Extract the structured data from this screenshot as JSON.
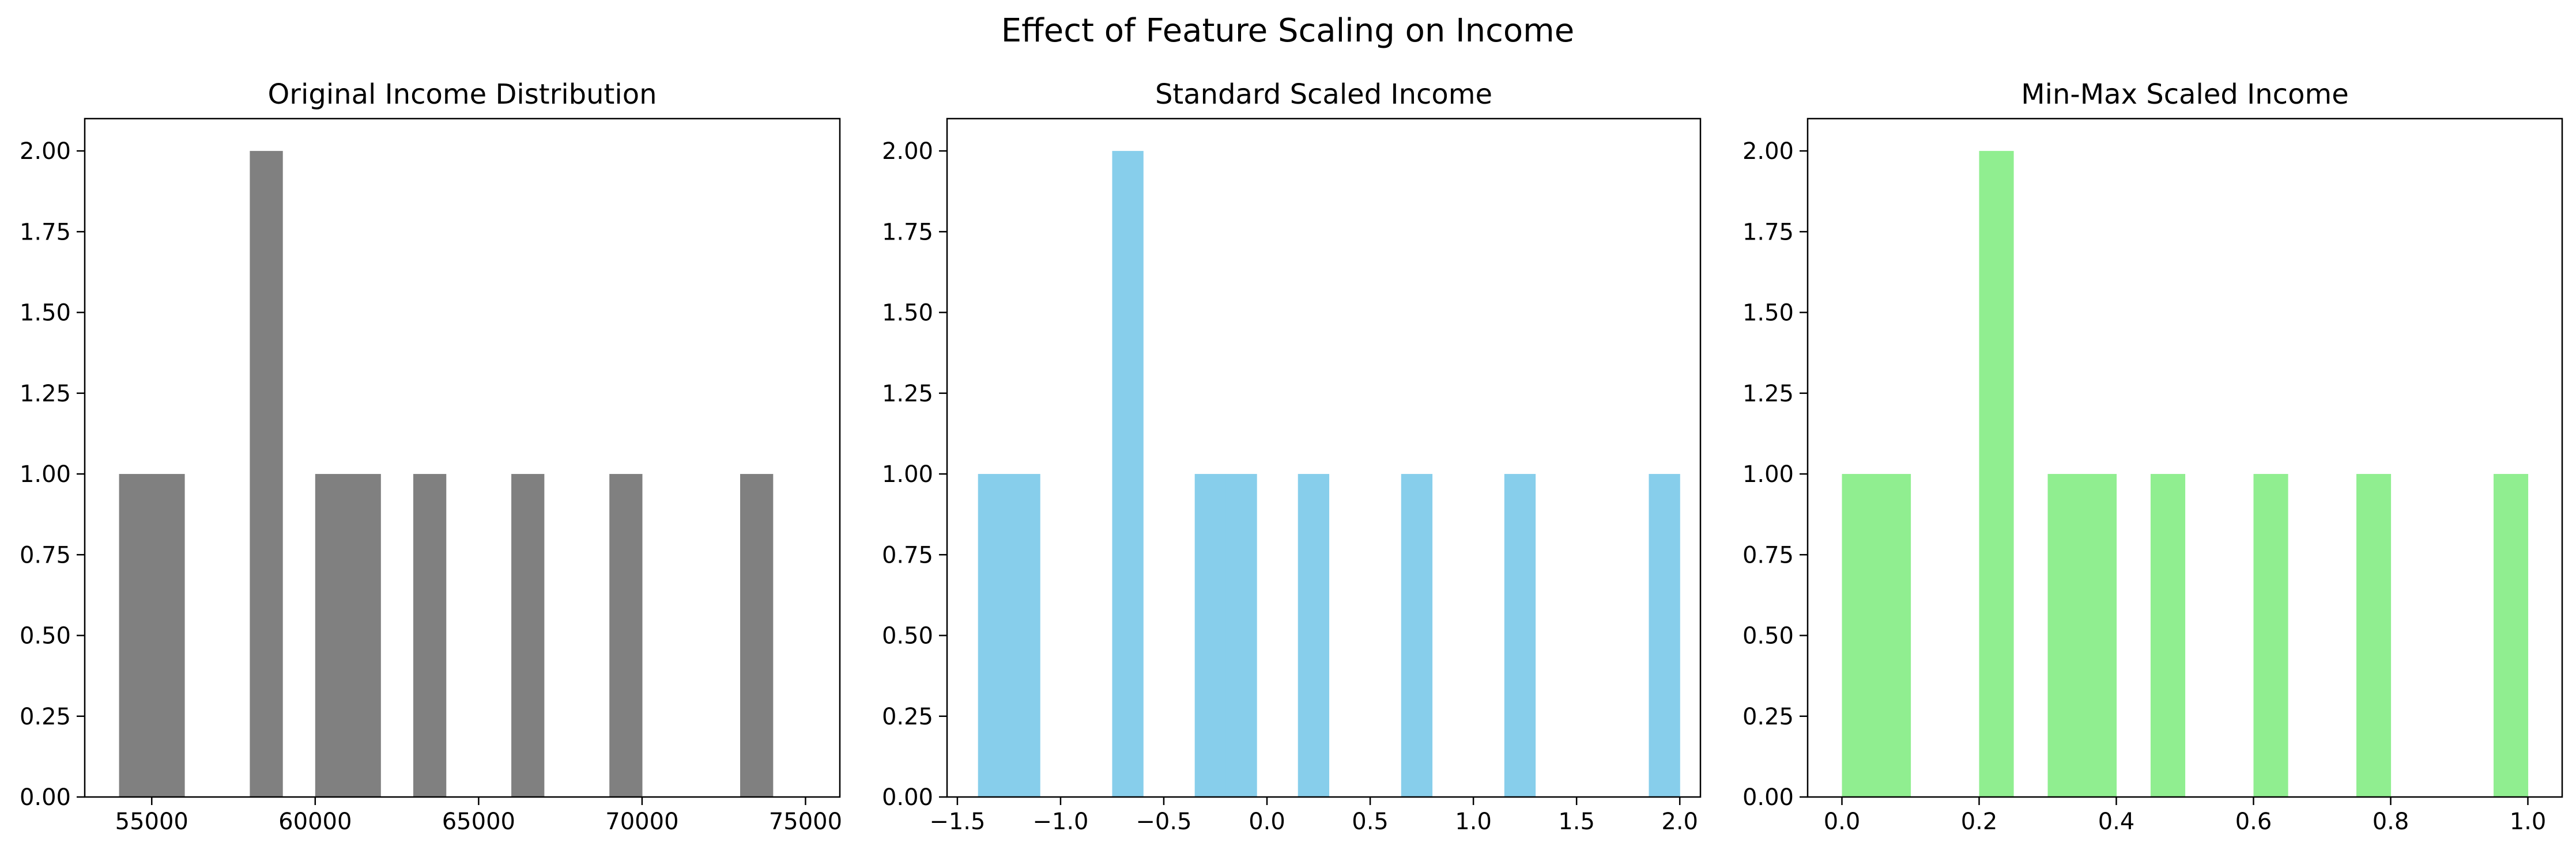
{
  "figure": {
    "title": "Effect of Feature Scaling on Income"
  },
  "chart_data": [
    {
      "type": "bar",
      "title": "Original Income Distribution",
      "color": "#808080",
      "xlim": [
        52950,
        76050
      ],
      "ylim": [
        0,
        2.1
      ],
      "xticks": [
        55000,
        60000,
        65000,
        70000,
        75000
      ],
      "xtick_labels": [
        "55000",
        "60000",
        "65000",
        "70000",
        "75000"
      ],
      "yticks": [
        0,
        0.25,
        0.5,
        0.75,
        1,
        1.25,
        1.5,
        1.75,
        2
      ],
      "ytick_labels": [
        "0.00",
        "0.25",
        "0.50",
        "0.75",
        "1.00",
        "1.25",
        "1.50",
        "1.75",
        "2.00"
      ],
      "bars": [
        {
          "x0": 54000,
          "x1": 55000,
          "value": 1
        },
        {
          "x0": 55000,
          "x1": 56000,
          "value": 1
        },
        {
          "x0": 58000,
          "x1": 59000,
          "value": 2
        },
        {
          "x0": 60000,
          "x1": 61000,
          "value": 1
        },
        {
          "x0": 61000,
          "x1": 62000,
          "value": 1
        },
        {
          "x0": 63000,
          "x1": 64000,
          "value": 1
        },
        {
          "x0": 66000,
          "x1": 67000,
          "value": 1
        },
        {
          "x0": 69000,
          "x1": 70000,
          "value": 1
        },
        {
          "x0": 73000,
          "x1": 74000,
          "value": 1
        }
      ]
    },
    {
      "type": "bar",
      "title": "Standard Scaled Income",
      "color": "#87ceeb",
      "xlim": [
        -1.55,
        2.1
      ],
      "ylim": [
        0,
        2.1
      ],
      "xticks": [
        -1.5,
        -1.0,
        -0.5,
        0.0,
        0.5,
        1.0,
        1.5,
        2.0
      ],
      "xtick_labels": [
        "−1.5",
        "−1.0",
        "−0.5",
        "0.0",
        "0.5",
        "1.0",
        "1.5",
        "2.0"
      ],
      "yticks": [
        0,
        0.25,
        0.5,
        0.75,
        1,
        1.25,
        1.5,
        1.75,
        2
      ],
      "ytick_labels": [
        "0.00",
        "0.25",
        "0.50",
        "0.75",
        "1.00",
        "1.25",
        "1.50",
        "1.75",
        "2.00"
      ],
      "bars": [
        {
          "x0": -1.4,
          "x1": -1.25,
          "value": 1
        },
        {
          "x0": -1.25,
          "x1": -1.1,
          "value": 1
        },
        {
          "x0": -0.75,
          "x1": -0.6,
          "value": 2
        },
        {
          "x0": -0.35,
          "x1": -0.2,
          "value": 1
        },
        {
          "x0": -0.2,
          "x1": -0.05,
          "value": 1
        },
        {
          "x0": 0.15,
          "x1": 0.3,
          "value": 1
        },
        {
          "x0": 0.65,
          "x1": 0.8,
          "value": 1
        },
        {
          "x0": 1.15,
          "x1": 1.3,
          "value": 1
        },
        {
          "x0": 1.85,
          "x1": 2.0,
          "value": 1
        }
      ]
    },
    {
      "type": "bar",
      "title": "Min-Max Scaled Income",
      "color": "#90ee90",
      "xlim": [
        -0.05,
        1.05
      ],
      "ylim": [
        0,
        2.1
      ],
      "xticks": [
        0.0,
        0.2,
        0.4,
        0.6,
        0.8,
        1.0
      ],
      "xtick_labels": [
        "0.0",
        "0.2",
        "0.4",
        "0.6",
        "0.8",
        "1.0"
      ],
      "yticks": [
        0,
        0.25,
        0.5,
        0.75,
        1,
        1.25,
        1.5,
        1.75,
        2
      ],
      "ytick_labels": [
        "0.00",
        "0.25",
        "0.50",
        "0.75",
        "1.00",
        "1.25",
        "1.50",
        "1.75",
        "2.00"
      ],
      "bars": [
        {
          "x0": 0.0,
          "x1": 0.05,
          "value": 1
        },
        {
          "x0": 0.05,
          "x1": 0.1,
          "value": 1
        },
        {
          "x0": 0.2,
          "x1": 0.25,
          "value": 2
        },
        {
          "x0": 0.3,
          "x1": 0.35,
          "value": 1
        },
        {
          "x0": 0.35,
          "x1": 0.4,
          "value": 1
        },
        {
          "x0": 0.45,
          "x1": 0.5,
          "value": 1
        },
        {
          "x0": 0.6,
          "x1": 0.65,
          "value": 1
        },
        {
          "x0": 0.75,
          "x1": 0.8,
          "value": 1
        },
        {
          "x0": 0.95,
          "x1": 1.0,
          "value": 1
        }
      ]
    }
  ]
}
